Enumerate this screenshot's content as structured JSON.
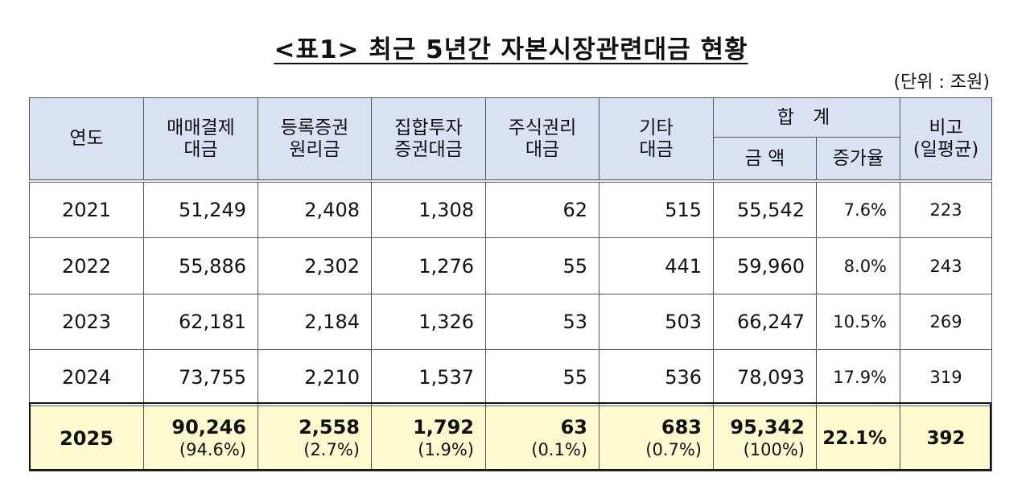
{
  "title": "<표1> 최근 5년간 자본시장관련대금 현황",
  "unit": "(단위 : 조원)",
  "headers": {
    "year": "연도",
    "trading": "매매결제\n대금",
    "registered": "등록증권\n원리금",
    "collective": "집합투자\n증권대금",
    "stockrights": "주식권리\n대금",
    "other": "기타\n대금",
    "total": "합 계",
    "amount": "금 액",
    "growth": "증가율",
    "note": "비고\n(일평균)"
  },
  "rows": [
    {
      "year": "2021",
      "trading": "51,249",
      "registered": "2,408",
      "collective": "1,308",
      "stockrights": "62",
      "other": "515",
      "amount": "55,542",
      "growth": "7.6%",
      "avg": "223"
    },
    {
      "year": "2022",
      "trading": "55,886",
      "registered": "2,302",
      "collective": "1,276",
      "stockrights": "55",
      "other": "441",
      "amount": "59,960",
      "growth": "8.0%",
      "avg": "243"
    },
    {
      "year": "2023",
      "trading": "62,181",
      "registered": "2,184",
      "collective": "1,326",
      "stockrights": "53",
      "other": "503",
      "amount": "66,247",
      "growth": "10.5%",
      "avg": "269"
    },
    {
      "year": "2024",
      "trading": "73,755",
      "registered": "2,210",
      "collective": "1,537",
      "stockrights": "55",
      "other": "536",
      "amount": "78,093",
      "growth": "17.9%",
      "avg": "319"
    }
  ],
  "highlight": {
    "year": "2025",
    "trading": "90,246",
    "trading_pct": "(94.6%)",
    "registered": "2,558",
    "registered_pct": "(2.7%)",
    "collective": "1,792",
    "collective_pct": "(1.9%)",
    "stockrights": "63",
    "stockrights_pct": "(0.1%)",
    "other": "683",
    "other_pct": "(0.7%)",
    "amount": "95,342",
    "amount_pct": "(100%)",
    "growth": "22.1%",
    "avg": "392"
  },
  "colors": {
    "header_bg": "#d9e1f2",
    "highlight_bg": "#fdfbcf"
  }
}
